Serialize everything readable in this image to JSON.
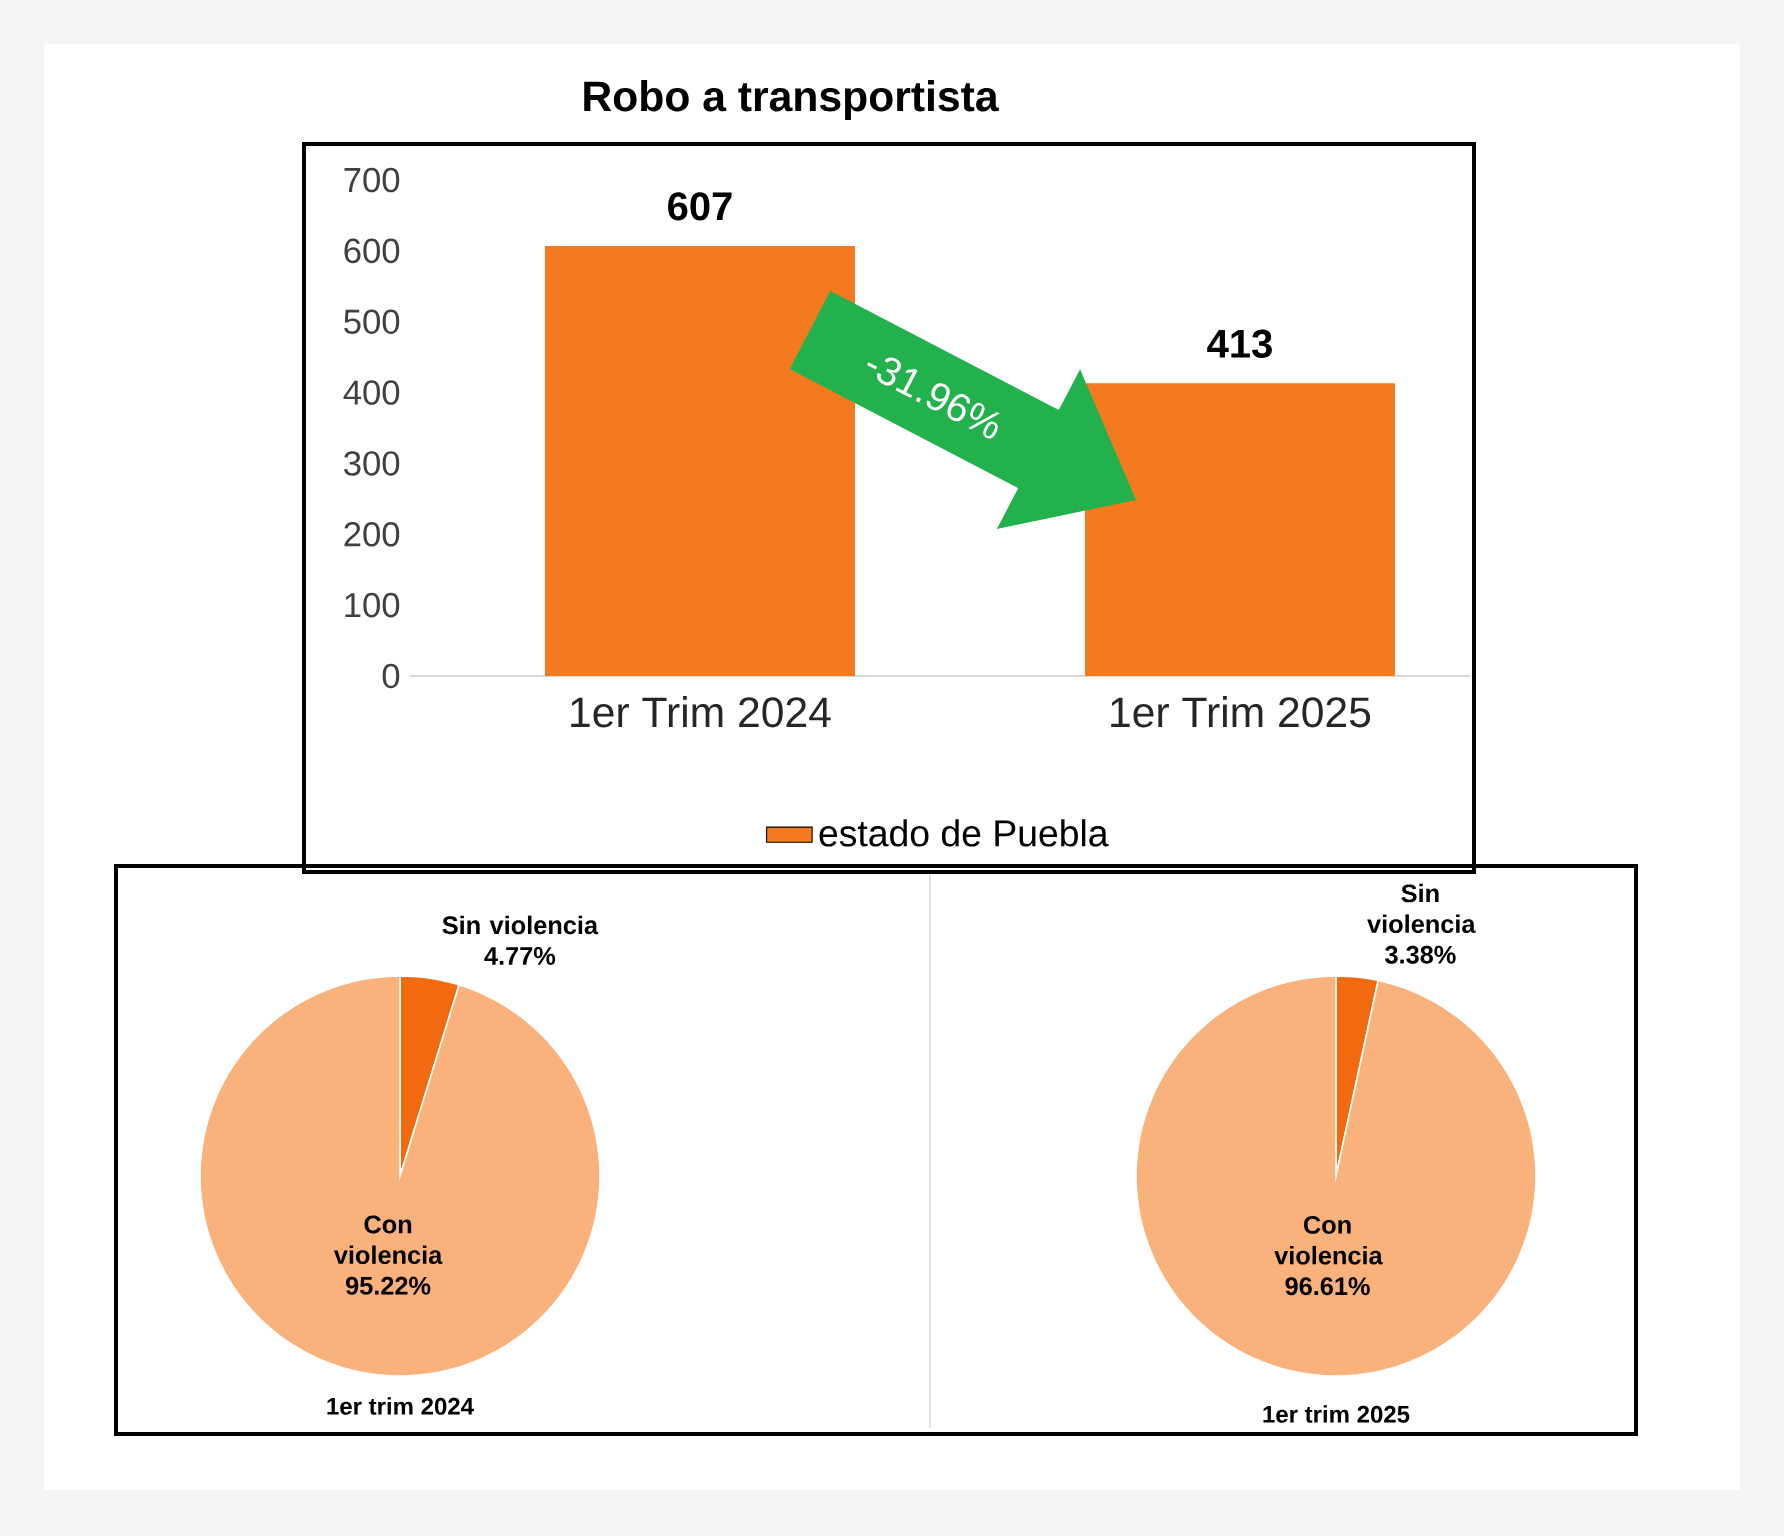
{
  "chart_data": [
    {
      "type": "bar",
      "title": "Robo a transportista",
      "categories": [
        "1er Trim 2024",
        "1er Trim 2025"
      ],
      "series": [
        {
          "name": "estado de Puebla",
          "color": "#f47a20",
          "values": [
            607,
            413
          ]
        }
      ],
      "ylim": [
        0,
        700
      ],
      "yticks": [
        0,
        100,
        200,
        300,
        400,
        500,
        600,
        700
      ],
      "data_labels": true,
      "legend": "bottom",
      "annotations": [
        "-31.96%"
      ]
    },
    {
      "type": "pie",
      "title": "1er trim 2024",
      "categories": [
        "Sin violencia",
        "Con violencia"
      ],
      "values": [
        4.77,
        95.22
      ],
      "value_labels": [
        "4.77%",
        "95.22%"
      ],
      "colors": [
        "#f26a10",
        "#f9b27c"
      ]
    },
    {
      "type": "pie",
      "title": "1er trim 2025",
      "categories": [
        "Sin violencia",
        "Con violencia"
      ],
      "values": [
        3.38,
        96.61
      ],
      "value_labels": [
        "3.38%",
        "96.61%"
      ],
      "colors": [
        "#f26a10",
        "#f9b27c"
      ]
    }
  ]
}
